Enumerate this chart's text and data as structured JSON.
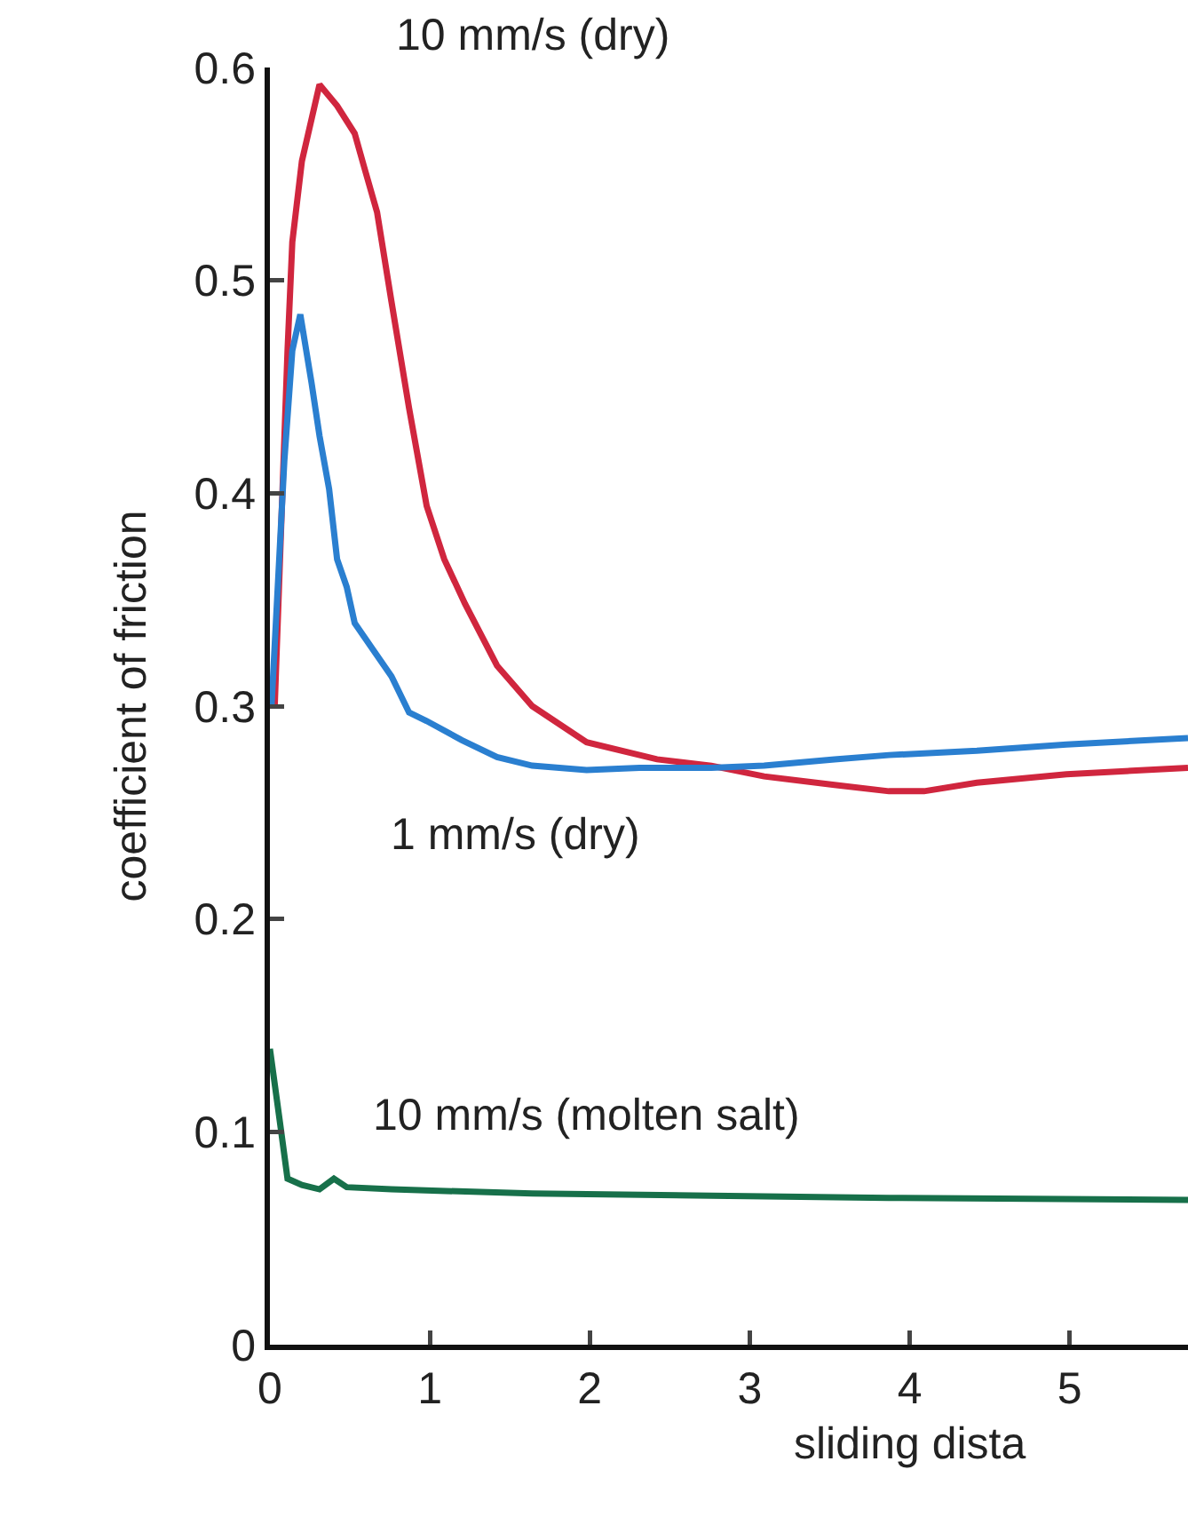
{
  "chart_data": {
    "type": "line",
    "xlabel": "sliding dista",
    "ylabel": "coefficient of friction",
    "xlim": [
      0,
      5.74
    ],
    "ylim": [
      0,
      0.6
    ],
    "xticks": [
      0,
      1,
      2,
      3,
      4,
      5
    ],
    "yticks": [
      0,
      0.1,
      0.2,
      0.3,
      0.4,
      0.5,
      0.6
    ],
    "grid": false,
    "legend": false,
    "marker": "none",
    "line_style": "solid",
    "series": [
      {
        "name": "10 mm/s (dry)",
        "color": "#d0263e",
        "x": [
          0.03,
          0.11,
          0.14,
          0.2,
          0.31,
          0.42,
          0.53,
          0.59,
          0.67,
          0.76,
          0.87,
          0.98,
          1.09,
          1.22,
          1.42,
          1.64,
          1.98,
          2.42,
          2.76,
          3.09,
          3.53,
          3.87,
          4.09,
          4.42,
          4.98,
          5.74
        ],
        "values": [
          0.3,
          0.467,
          0.518,
          0.556,
          0.592,
          0.582,
          0.569,
          0.553,
          0.532,
          0.49,
          0.44,
          0.394,
          0.369,
          0.348,
          0.319,
          0.3,
          0.283,
          0.275,
          0.272,
          0.267,
          0.263,
          0.26,
          0.26,
          0.264,
          0.268,
          0.271
        ]
      },
      {
        "name": "1 mm/s (dry)",
        "color": "#2a7fd0",
        "x": [
          0.01,
          0.09,
          0.14,
          0.19,
          0.26,
          0.31,
          0.37,
          0.42,
          0.48,
          0.53,
          0.64,
          0.76,
          0.87,
          0.98,
          1.2,
          1.42,
          1.64,
          1.98,
          2.31,
          2.76,
          3.09,
          3.53,
          3.87,
          4.42,
          4.98,
          5.74
        ],
        "values": [
          0.3,
          0.415,
          0.467,
          0.484,
          0.452,
          0.427,
          0.402,
          0.369,
          0.356,
          0.339,
          0.327,
          0.314,
          0.297,
          0.293,
          0.284,
          0.276,
          0.272,
          0.27,
          0.271,
          0.271,
          0.272,
          0.275,
          0.277,
          0.279,
          0.282,
          0.285
        ]
      },
      {
        "name": "10 mm/s (molten salt)",
        "color": "#17704a",
        "x": [
          0,
          0.06,
          0.11,
          0.2,
          0.31,
          0.4,
          0.48,
          0.76,
          1.64,
          2.76,
          3.87,
          5.74
        ],
        "values": [
          0.139,
          0.106,
          0.078,
          0.075,
          0.073,
          0.078,
          0.074,
          0.073,
          0.071,
          0.07,
          0.069,
          0.068
        ]
      }
    ]
  }
}
